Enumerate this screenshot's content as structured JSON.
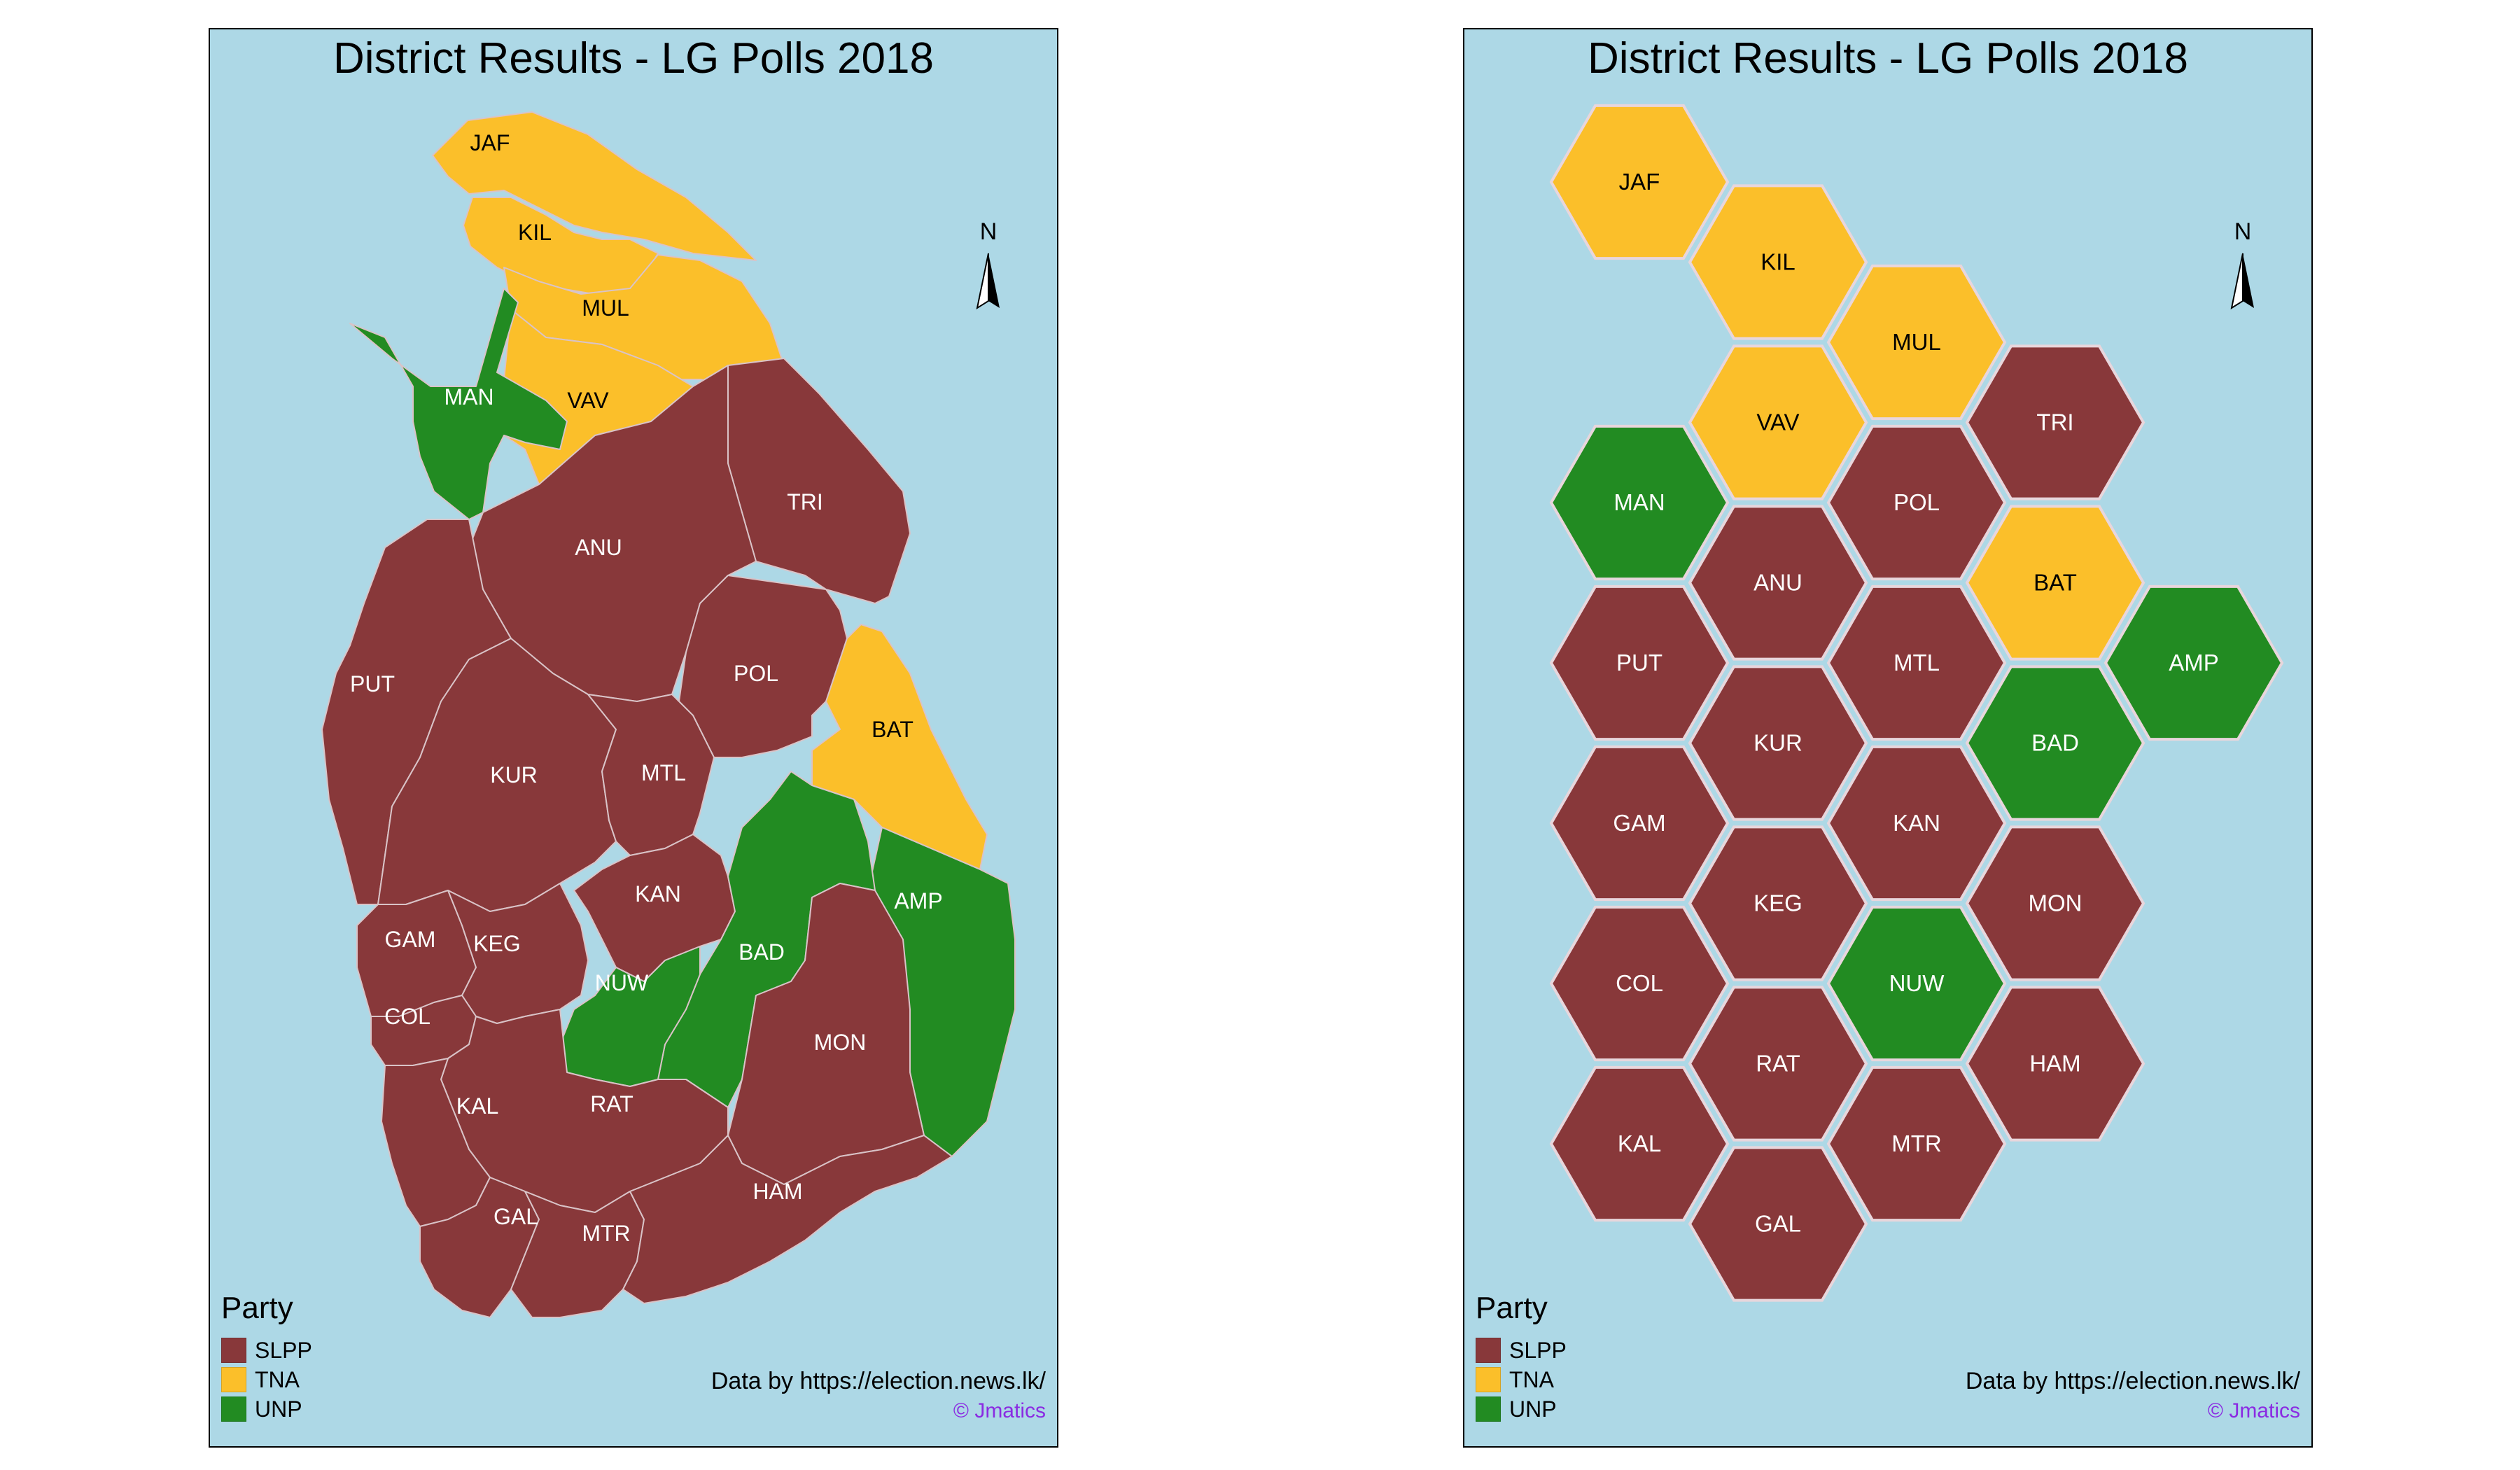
{
  "title": "District Results - LG Polls 2018",
  "north_label": "N",
  "legend": {
    "title": "Party",
    "items": [
      {
        "party": "SLPP",
        "color": "#88383a"
      },
      {
        "party": "TNA",
        "color": "#fbbf2a"
      },
      {
        "party": "UNP",
        "color": "#228b22"
      }
    ]
  },
  "credit": "Data by https://election.news.lk/",
  "copyright": "© Jmatics",
  "districts": [
    {
      "code": "JAF",
      "party": "TNA"
    },
    {
      "code": "KIL",
      "party": "TNA"
    },
    {
      "code": "MUL",
      "party": "TNA"
    },
    {
      "code": "VAV",
      "party": "TNA"
    },
    {
      "code": "MAN",
      "party": "UNP"
    },
    {
      "code": "TRI",
      "party": "SLPP"
    },
    {
      "code": "ANU",
      "party": "SLPP"
    },
    {
      "code": "POL",
      "party": "SLPP"
    },
    {
      "code": "PUT",
      "party": "SLPP"
    },
    {
      "code": "BAT",
      "party": "TNA"
    },
    {
      "code": "KUR",
      "party": "SLPP"
    },
    {
      "code": "MTL",
      "party": "SLPP"
    },
    {
      "code": "AMP",
      "party": "UNP"
    },
    {
      "code": "KAN",
      "party": "SLPP"
    },
    {
      "code": "BAD",
      "party": "UNP"
    },
    {
      "code": "GAM",
      "party": "SLPP"
    },
    {
      "code": "KEG",
      "party": "SLPP"
    },
    {
      "code": "NUW",
      "party": "UNP"
    },
    {
      "code": "COL",
      "party": "SLPP"
    },
    {
      "code": "MON",
      "party": "SLPP"
    },
    {
      "code": "RAT",
      "party": "SLPP"
    },
    {
      "code": "KAL",
      "party": "SLPP"
    },
    {
      "code": "GAL",
      "party": "SLPP"
    },
    {
      "code": "MTR",
      "party": "SLPP"
    },
    {
      "code": "HAM",
      "party": "SLPP"
    }
  ]
}
